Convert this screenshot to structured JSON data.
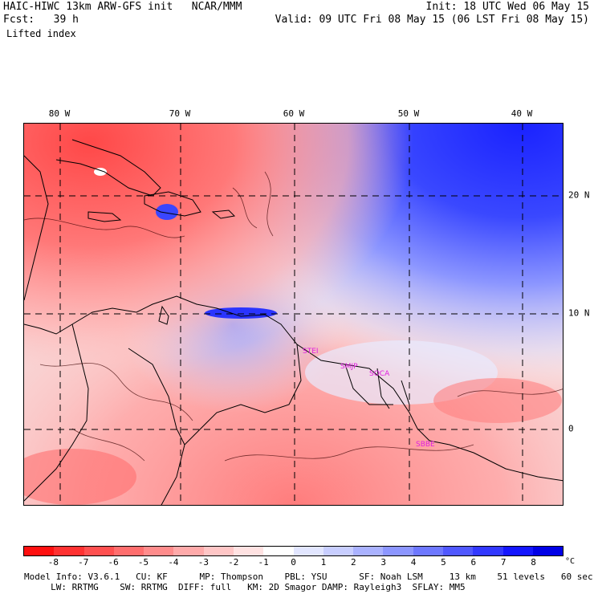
{
  "header": {
    "title": "HAIC-HIWC 13km ARW-GFS init   NCAR/MMM",
    "init": "Init: 18 UTC Wed 06 May 15",
    "fcst": "Fcst:   39 h",
    "valid": "Valid: 09 UTC Fri 08 May 15 (06 LST Fri 08 May 15)",
    "field": "Lifted index"
  },
  "map": {
    "lon_labels": [
      "80 W",
      "70 W",
      "60 W",
      "50 W",
      "40 W"
    ],
    "lat_labels": [
      "20 N",
      "10 N",
      "0"
    ],
    "stations": [
      "STEI",
      "SMJP",
      "SOCA",
      "SBBE"
    ]
  },
  "colorbar": {
    "colors": [
      "#ff1010",
      "#ff3232",
      "#ff5050",
      "#ff6e6e",
      "#ff8c8c",
      "#ffaaaa",
      "#ffc6c6",
      "#ffe2e2",
      "#ffffff",
      "#e2e6ff",
      "#c8ceff",
      "#aab2ff",
      "#8c96ff",
      "#6e78ff",
      "#5058ff",
      "#3238ff",
      "#1416ff",
      "#0000e6"
    ],
    "ticks": [
      "-8",
      "-7",
      "-6",
      "-5",
      "-4",
      "-3",
      "-2",
      "-1",
      "0",
      "1",
      "2",
      "3",
      "4",
      "5",
      "6",
      "7",
      "8"
    ],
    "unit": "°C"
  },
  "footer": {
    "line1": "Model Info: V3.6.1   CU: KF      MP: Thompson    PBL: YSU      SF: Noah LSM     13 km    51 levels   60 sec",
    "line2": "     LW: RRTMG    SW: RRTMG  DIFF: full   KM: 2D Smagor DAMP: Rayleigh3  SFLAY: MM5"
  }
}
